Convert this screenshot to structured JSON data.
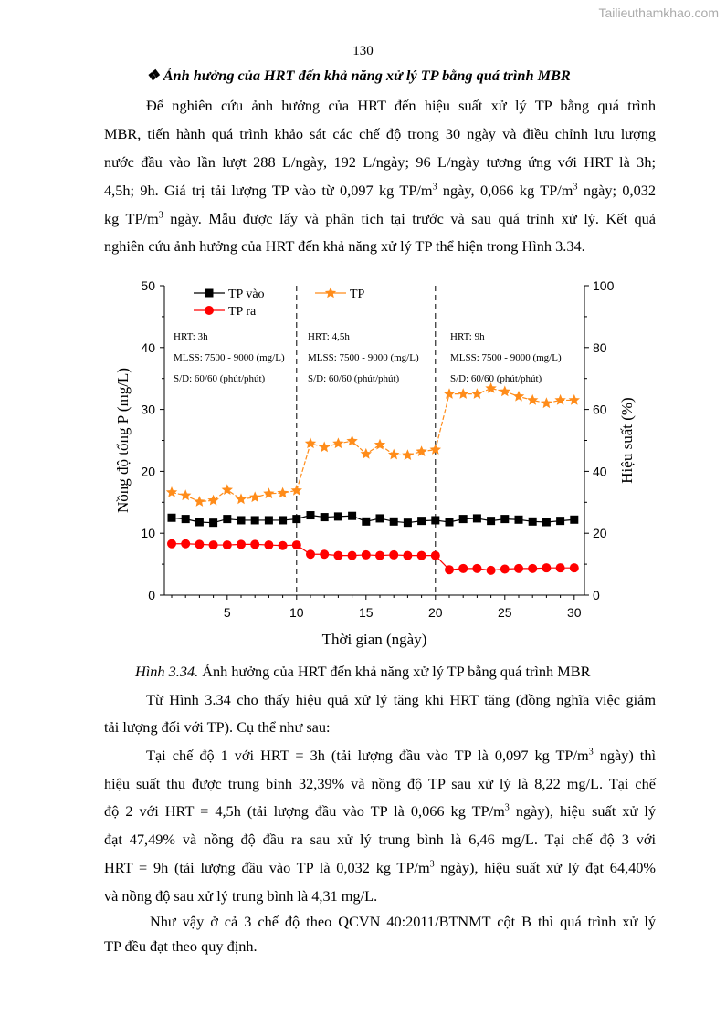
{
  "watermark": "Tailieuthamkhao.com",
  "page_number": "130",
  "heading": {
    "bullet": "❖",
    "text": "Ảnh hưởng của HRT đến khả năng xử lý TP bằng quá trình MBR"
  },
  "para1": [
    "Để nghiên cứu ảnh hưởng của HRT đến hiệu suất xử lý TP bằng quá trình",
    "MBR, tiến hành quá trình khảo sát các chế độ trong 30 ngày và điều chỉnh lưu lượng",
    "nước đầu vào lần lượt 288 L/ngày, 192 L/ngày; 96 L/ngày tương ứng với HRT là 3h;",
    [
      "4,5h; 9h. Giá trị tải lượng TP vào từ 0,097 kg TP/m",
      "3",
      " ngày, 0,066 kg TP/m",
      "3",
      " ngày; 0,032"
    ],
    [
      "kg TP/m",
      "3",
      " ngày. Mẫu được lấy và phân tích tại trước và sau quá trình xử lý. Kết quả"
    ],
    "nghiên cứu ảnh hưởng của HRT đến khả năng xử lý TP thể hiện trong Hình 3.34."
  ],
  "caption": {
    "label": "Hình 3.34.",
    "text": " Ảnh hưởng của HRT đến khả năng xử lý TP bằng quá trình MBR"
  },
  "para2": [
    "Từ Hình 3.34 cho thấy hiệu quả xử lý tăng khi HRT tăng (đồng nghĩa việc giảm",
    "tải lượng đối với TP). Cụ thể như sau:"
  ],
  "para3": [
    [
      "Tại chế độ 1 với HRT = 3h (tải lượng đầu vào TP là 0,097 kg TP/m",
      "3",
      " ngày) thì"
    ],
    "hiệu suất thu được trung bình 32,39% và nồng độ TP sau xử lý là 8,22 mg/L. Tại chế",
    [
      "độ 2 với HRT = 4,5h (tải lượng đầu vào TP là 0,066 kg TP/m",
      "3",
      " ngày), hiệu suất xử lý"
    ],
    "đạt 47,49% và nồng độ đầu ra sau xử lý trung bình là 6,46 mg/L. Tại chế độ 3 với",
    [
      "HRT = 9h (tải lượng đầu vào TP là 0,032 kg TP/m",
      "3",
      " ngày), hiệu suất xử lý đạt 64,40%"
    ],
    "và nồng độ sau xử lý trung bình là 4,31 mg/L."
  ],
  "para4": [
    "Như vậy ở cả 3 chế độ theo QCVN 40:2011/BTNMT cột B thì quá trình xử lý",
    "TP đều đạt theo quy định."
  ],
  "chart_data": {
    "type": "line",
    "xlabel": "Thời gian (ngày)",
    "ylabel": "Nồng độ tổng P (mg/L)",
    "y2label": "Hiệu suất (%)",
    "xlim": [
      0.5,
      30.5
    ],
    "ylim": [
      0,
      50
    ],
    "y2lim": [
      0,
      100
    ],
    "xticks": [
      5,
      10,
      15,
      20,
      25,
      30
    ],
    "yticks": [
      0,
      10,
      20,
      30,
      40,
      50
    ],
    "y2ticks": [
      0,
      20,
      40,
      60,
      80,
      100
    ],
    "x": [
      1,
      2,
      3,
      4,
      5,
      6,
      7,
      8,
      9,
      10,
      11,
      12,
      13,
      14,
      15,
      16,
      17,
      18,
      19,
      20,
      21,
      22,
      23,
      24,
      25,
      26,
      27,
      28,
      29,
      30
    ],
    "series": [
      {
        "name": "TP vào",
        "axis": "left",
        "color": "#000000",
        "marker": "square",
        "values": [
          12.5,
          12.3,
          11.8,
          11.7,
          12.3,
          12.1,
          12.1,
          12.1,
          12.1,
          12.3,
          12.9,
          12.6,
          12.7,
          12.8,
          11.9,
          12.4,
          11.9,
          11.7,
          12.0,
          12.1,
          11.8,
          12.3,
          12.4,
          12.0,
          12.3,
          12.2,
          11.9,
          11.8,
          12.0,
          12.2
        ]
      },
      {
        "name": "TP ra",
        "axis": "left",
        "color": "#ff0000",
        "marker": "circle",
        "values": [
          8.3,
          8.3,
          8.2,
          8.1,
          8.1,
          8.2,
          8.2,
          8.1,
          8.0,
          8.1,
          6.6,
          6.6,
          6.4,
          6.4,
          6.5,
          6.4,
          6.5,
          6.4,
          6.4,
          6.4,
          4.1,
          4.3,
          4.3,
          4.0,
          4.2,
          4.3,
          4.3,
          4.4,
          4.4,
          4.4
        ]
      },
      {
        "name": "TP",
        "axis": "right",
        "color": "#ff8c1a",
        "marker": "star",
        "values": [
          33.2,
          32.2,
          30.2,
          30.6,
          34.0,
          31.0,
          31.6,
          32.8,
          33.0,
          33.8,
          49.0,
          47.8,
          49.0,
          49.8,
          45.6,
          48.6,
          45.4,
          45.2,
          46.4,
          47.0,
          65.0,
          65.0,
          65.0,
          66.8,
          65.8,
          64.2,
          63.0,
          62.0,
          63.0,
          63.0
        ]
      }
    ],
    "dividers": [
      10,
      20
    ],
    "annotations": [
      [
        "HRT: 3h",
        "MLSS: 7500 - 9000 (mg/L)",
        "S/D: 60/60 (phút/phút)"
      ],
      [
        "HRT: 4,5h",
        "MLSS: 7500 - 9000 (mg/L)",
        "S/D: 60/60 (phút/phút)"
      ],
      [
        "HRT: 9h",
        "MLSS: 7500 - 9000 (mg/L)",
        "S/D: 60/60 (phút/phút)"
      ]
    ]
  }
}
